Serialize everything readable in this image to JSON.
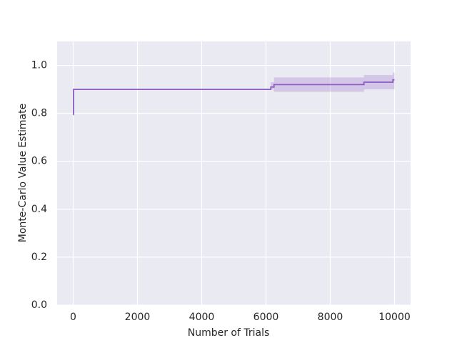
{
  "chart_data": {
    "type": "line",
    "xlabel": "Number of Trials",
    "ylabel": "Monte-Carlo Value Estimate",
    "x": [
      0,
      10,
      10,
      6150,
      6150,
      6250,
      6250,
      9050,
      9050,
      9950,
      9950,
      10000
    ],
    "series": [
      {
        "color": "#8e5cc4",
        "values": [
          0.795,
          0.795,
          0.9,
          0.9,
          0.91,
          0.91,
          0.92,
          0.92,
          0.93,
          0.93,
          0.94,
          0.94
        ]
      }
    ],
    "band": {
      "x_start": [
        6150,
        6250,
        9050,
        9950
      ],
      "x_end": [
        6250,
        9050,
        9950,
        10000
      ],
      "lower": [
        0.9,
        0.89,
        0.9,
        0.9
      ],
      "upper": [
        0.93,
        0.95,
        0.96,
        0.97
      ]
    },
    "xlim": [
      -500,
      10500
    ],
    "ylim": [
      0,
      1.1
    ],
    "xticks": [
      0,
      2000,
      4000,
      6000,
      8000,
      10000
    ],
    "yticks": [
      {
        "value": 0,
        "label": "0.0"
      },
      0.2,
      0.4,
      0.6,
      0.8,
      {
        "value": 1,
        "label": "1.0"
      }
    ],
    "grid": true
  }
}
